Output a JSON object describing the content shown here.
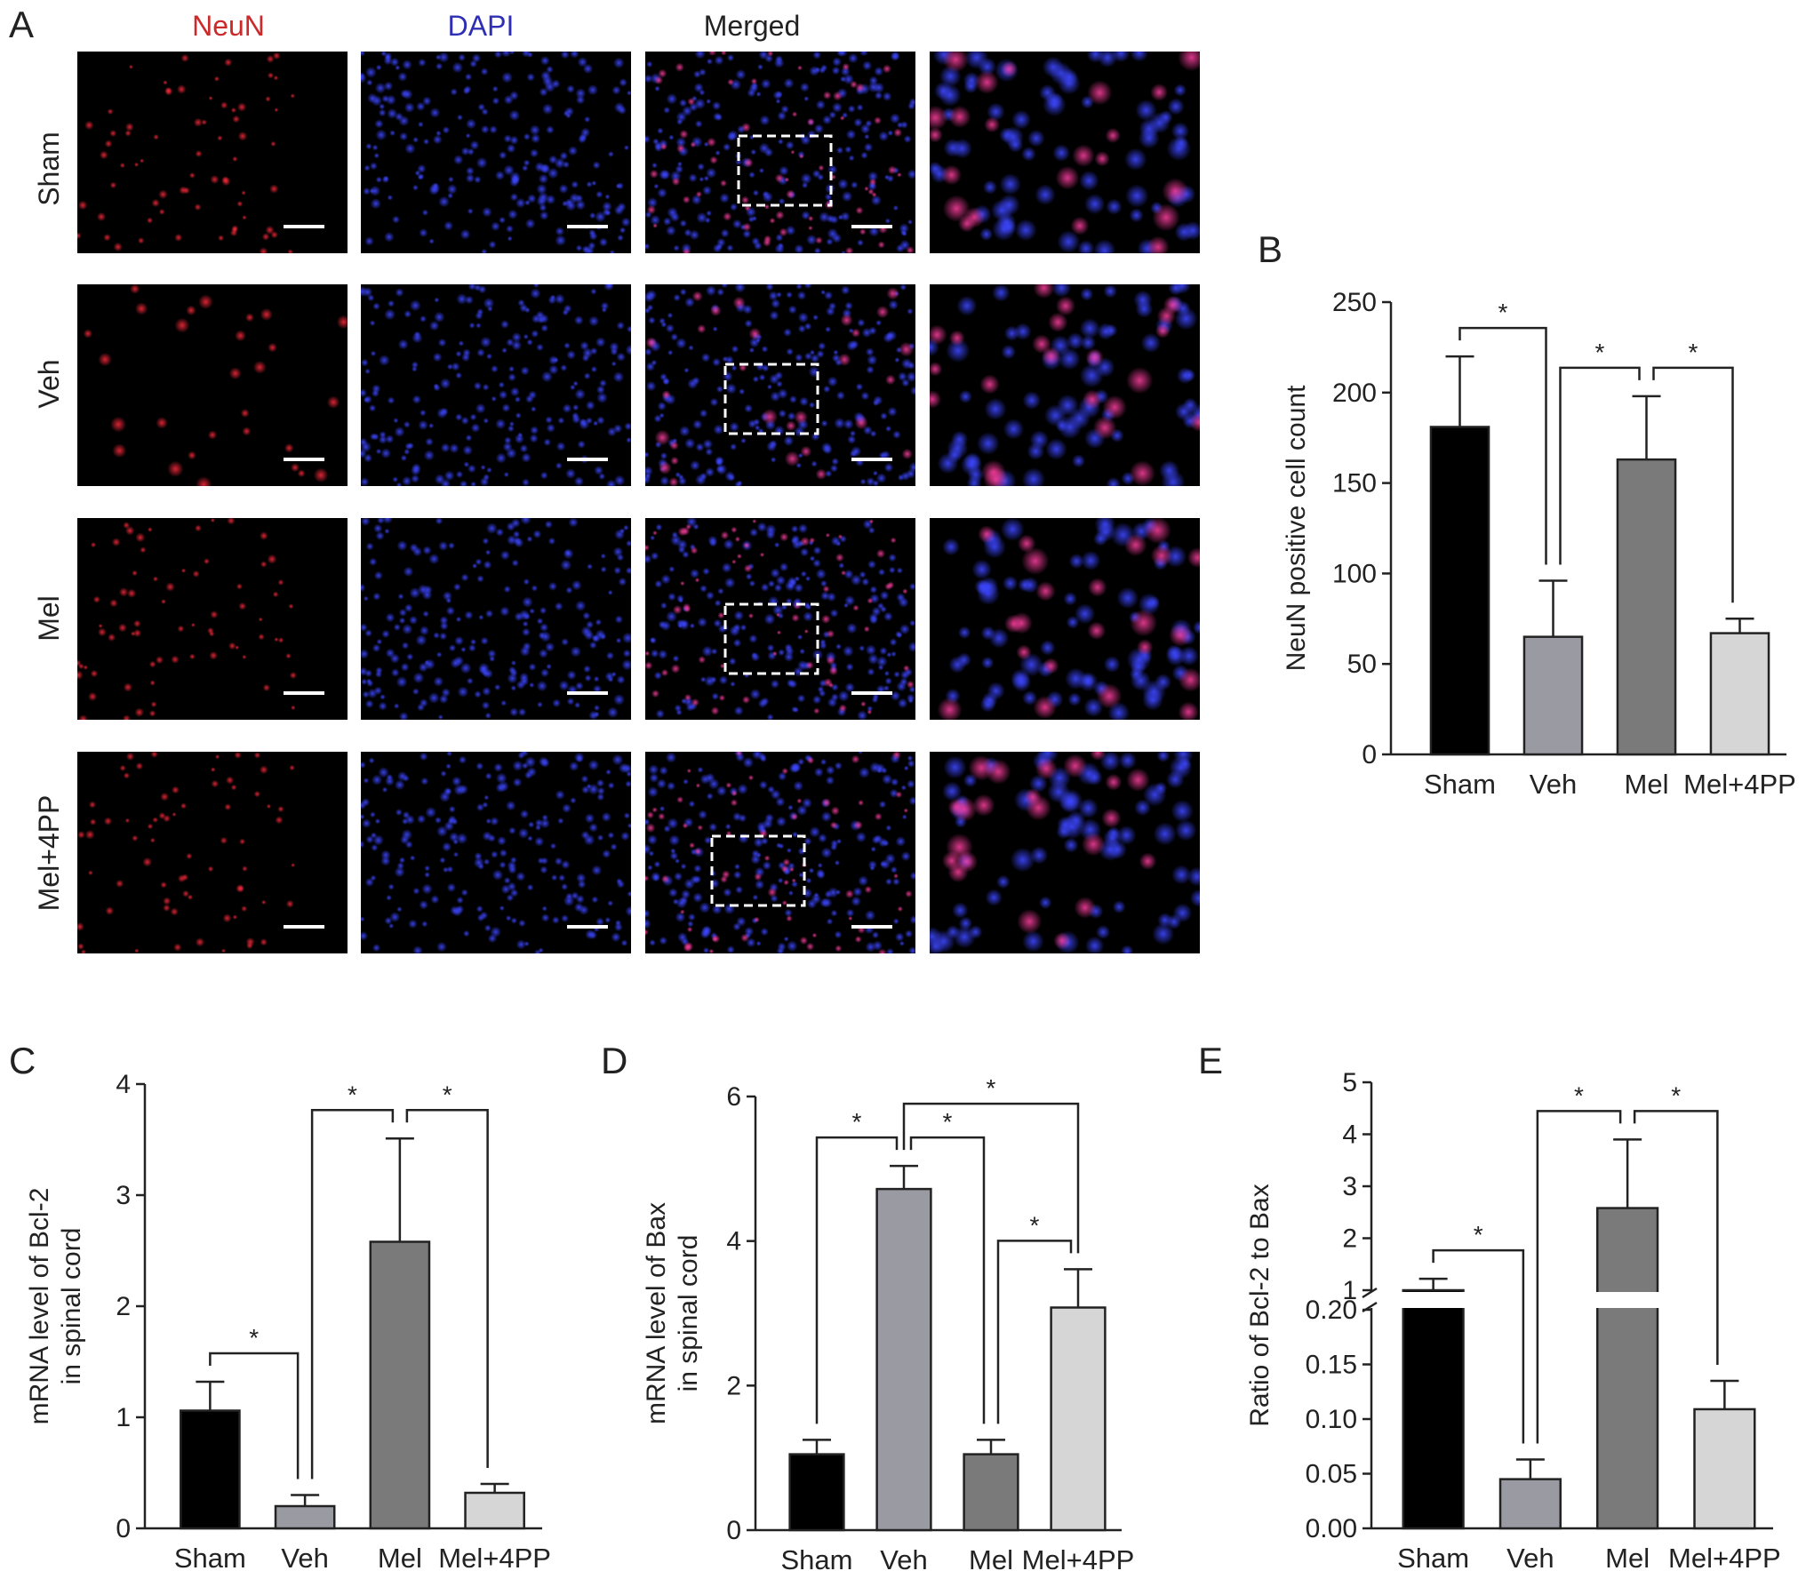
{
  "panelA": {
    "letter": "A",
    "columns": [
      {
        "label": "NeuN",
        "color": "#cc2a2a"
      },
      {
        "label": "DAPI",
        "color": "#2f2fb5"
      },
      {
        "label": "Merged",
        "color": "#222222"
      }
    ],
    "rows": [
      "Sham",
      "Veh",
      "Mel",
      "Mel+4PP"
    ]
  },
  "chart_data": [
    {
      "panel": "B",
      "type": "bar",
      "categories": [
        "Sham",
        "Veh",
        "Mel",
        "Mel+4PP"
      ],
      "values": [
        181,
        65,
        163,
        67
      ],
      "errors": [
        39,
        31,
        35,
        8
      ],
      "colors": [
        "#000000",
        "#9a9aa2",
        "#7a7a7a",
        "#d6d6d6"
      ],
      "ylabel": "NeuN positive cell count",
      "ylim": [
        0,
        250
      ],
      "ticks": [
        "0",
        "50",
        "100",
        "150",
        "200",
        "250"
      ],
      "significance": [
        {
          "from": 0,
          "to": 1,
          "label": "*"
        },
        {
          "from": 1,
          "to": 2,
          "label": "*"
        },
        {
          "from": 2,
          "to": 3,
          "label": "*"
        }
      ]
    },
    {
      "panel": "C",
      "type": "bar",
      "categories": [
        "Sham",
        "Veh",
        "Mel",
        "Mel+4PP"
      ],
      "values": [
        1.06,
        0.2,
        2.58,
        0.32
      ],
      "errors": [
        0.26,
        0.1,
        0.93,
        0.08
      ],
      "colors": [
        "#000000",
        "#9a9aa2",
        "#7a7a7a",
        "#d6d6d6"
      ],
      "ylabel_lines": [
        "mRNA level of Bcl-2",
        "in spinal cord"
      ],
      "ylim": [
        0,
        4
      ],
      "ticks": [
        "0",
        "1",
        "2",
        "3",
        "4"
      ],
      "significance": [
        {
          "from": 0,
          "to": 1,
          "label": "*"
        },
        {
          "from": 1,
          "to": 2,
          "label": "*"
        },
        {
          "from": 2,
          "to": 3,
          "label": "*"
        }
      ]
    },
    {
      "panel": "D",
      "type": "bar",
      "categories": [
        "Sham",
        "Veh",
        "Mel",
        "Mel+4PP"
      ],
      "values": [
        1.05,
        4.72,
        1.05,
        3.08
      ],
      "errors": [
        0.2,
        0.32,
        0.2,
        0.53
      ],
      "colors": [
        "#000000",
        "#9a9aa2",
        "#7a7a7a",
        "#d6d6d6"
      ],
      "ylabel_lines": [
        "mRNA level of Bax",
        "in spinal cord"
      ],
      "ylim": [
        0,
        6
      ],
      "ticks": [
        "0",
        "2",
        "4",
        "6"
      ],
      "significance": [
        {
          "from": 0,
          "to": 1,
          "label": "*"
        },
        {
          "from": 1,
          "to": 2,
          "label": "*"
        },
        {
          "from": 2,
          "to": 3,
          "label": "*"
        },
        {
          "from": 1,
          "to": 3,
          "label": "*"
        }
      ]
    },
    {
      "panel": "E",
      "type": "bar",
      "axis_break": true,
      "categories": [
        "Sham",
        "Veh",
        "Mel",
        "Mel+4PP"
      ],
      "values": [
        1.0,
        0.045,
        2.58,
        0.109
      ],
      "errors": [
        0.22,
        0.018,
        1.32,
        0.026
      ],
      "colors": [
        "#000000",
        "#9a9aa2",
        "#7a7a7a",
        "#d6d6d6"
      ],
      "ylabel": "Ratio of Bcl-2 to Bax",
      "lower_ylim": [
        0,
        0.2
      ],
      "upper_ylim": [
        1,
        5
      ],
      "lower_ticks": [
        "0.00",
        "0.05",
        "0.10",
        "0.15",
        "0.20"
      ],
      "upper_ticks": [
        "1",
        "2",
        "3",
        "4",
        "5"
      ],
      "significance": [
        {
          "from": 0,
          "to": 1,
          "label": "*"
        },
        {
          "from": 1,
          "to": 2,
          "label": "*"
        },
        {
          "from": 2,
          "to": 3,
          "label": "*"
        }
      ]
    }
  ]
}
